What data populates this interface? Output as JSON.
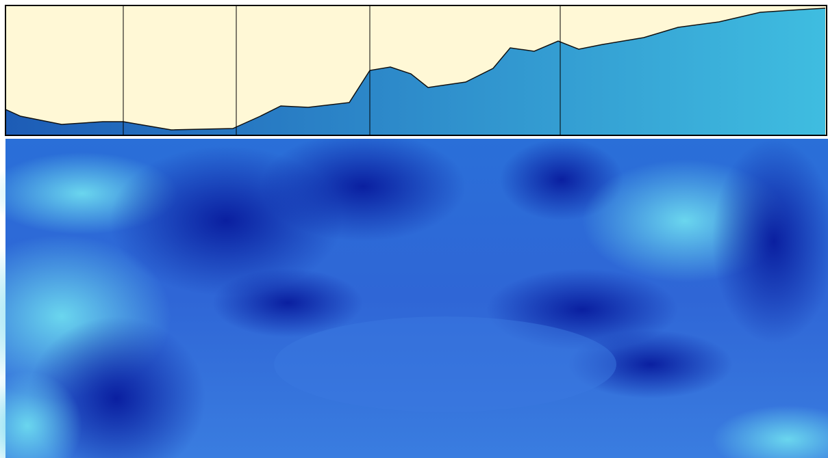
{
  "chart_data": {
    "type": "area",
    "x": [
      0,
      22,
      82,
      142,
      172,
      242,
      332,
      372,
      402,
      442,
      502,
      532,
      562,
      592,
      617,
      672,
      712,
      737,
      772,
      807,
      837,
      872,
      932,
      982,
      1042,
      1102,
      1162,
      1197
    ],
    "values": [
      38,
      28,
      16,
      20,
      20,
      8,
      10,
      28,
      43,
      41,
      48,
      95,
      100,
      90,
      70,
      78,
      98,
      128,
      123,
      138,
      126,
      133,
      143,
      158,
      166,
      180,
      184,
      186
    ],
    "xlim": [
      0,
      1199
    ],
    "ylim": [
      0,
      190
    ],
    "markers": [
      172,
      337,
      532,
      810
    ],
    "background": "#fff8d6",
    "colors": [
      "#1d5cb6",
      "#3fbde0"
    ]
  }
}
